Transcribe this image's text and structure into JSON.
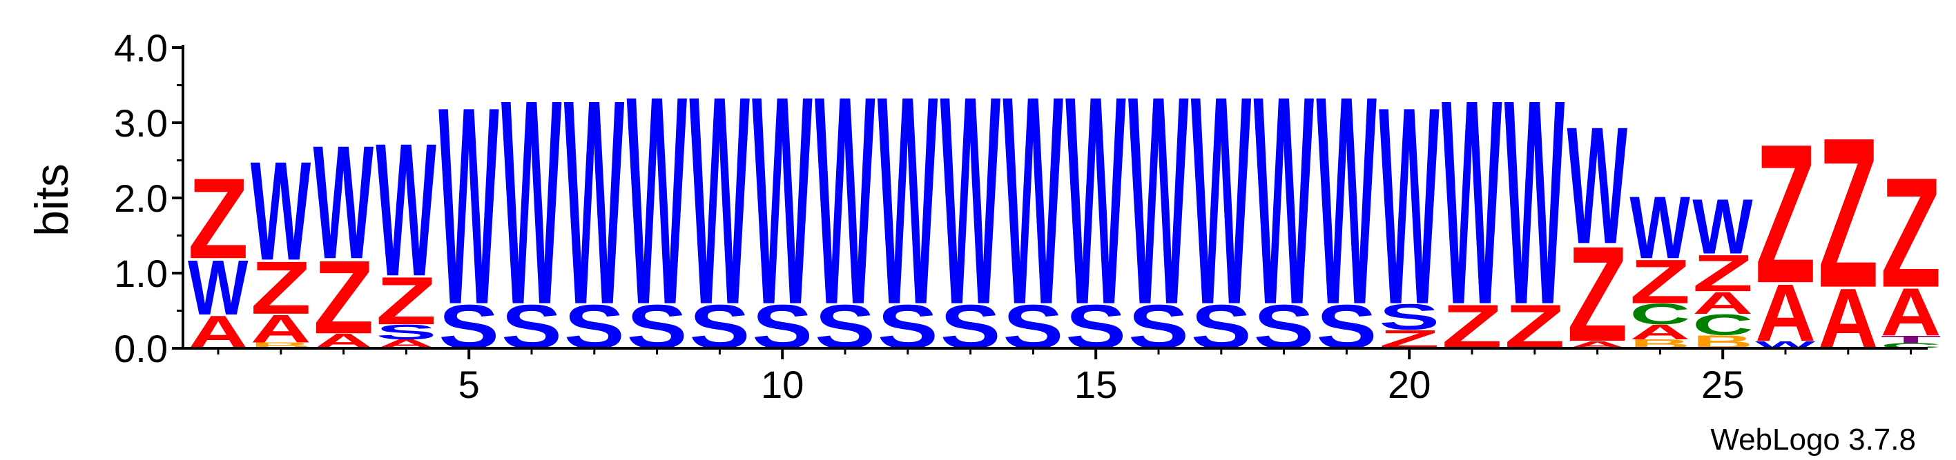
{
  "chart_data": {
    "type": "sequence-logo",
    "ylabel": "bits",
    "ylim": [
      0,
      4.0
    ],
    "y_ticks": [
      "0.0",
      "1.0",
      "2.0",
      "3.0",
      "4.0"
    ],
    "x_ticks": [
      5,
      10,
      15,
      20,
      25
    ],
    "credit": "WebLogo 3.7.8",
    "colors": {
      "A": "#ff0000",
      "Z": "#ff0000",
      "W": "#0000ff",
      "S": "#0000ff",
      "C": "#008000",
      "B": "#ff9900",
      "T": "#800080"
    },
    "positions": [
      {
        "pos": 1,
        "letters": [
          [
            "A",
            0.45
          ],
          [
            "W",
            0.75
          ],
          [
            "Z",
            1.1
          ]
        ]
      },
      {
        "pos": 2,
        "letters": [
          [
            "B",
            0.08
          ],
          [
            "A",
            0.38
          ],
          [
            "Z",
            0.72
          ],
          [
            "W",
            1.35
          ]
        ]
      },
      {
        "pos": 3,
        "letters": [
          [
            "A",
            0.2
          ],
          [
            "Z",
            1.0
          ],
          [
            "W",
            1.55
          ]
        ]
      },
      {
        "pos": 4,
        "letters": [
          [
            "A",
            0.12
          ],
          [
            "S",
            0.2
          ],
          [
            "Z",
            0.65
          ],
          [
            "W",
            1.82
          ]
        ]
      },
      {
        "pos": 5,
        "letters": [
          [
            "S",
            0.6
          ],
          [
            "W",
            2.7
          ]
        ]
      },
      {
        "pos": 6,
        "letters": [
          [
            "S",
            0.6
          ],
          [
            "W",
            2.8
          ]
        ]
      },
      {
        "pos": 7,
        "letters": [
          [
            "S",
            0.6
          ],
          [
            "W",
            2.8
          ]
        ]
      },
      {
        "pos": 8,
        "letters": [
          [
            "S",
            0.6
          ],
          [
            "W",
            2.85
          ]
        ]
      },
      {
        "pos": 9,
        "letters": [
          [
            "S",
            0.6
          ],
          [
            "W",
            2.85
          ]
        ]
      },
      {
        "pos": 10,
        "letters": [
          [
            "S",
            0.6
          ],
          [
            "W",
            2.85
          ]
        ]
      },
      {
        "pos": 11,
        "letters": [
          [
            "S",
            0.6
          ],
          [
            "W",
            2.85
          ]
        ]
      },
      {
        "pos": 12,
        "letters": [
          [
            "S",
            0.6
          ],
          [
            "W",
            2.85
          ]
        ]
      },
      {
        "pos": 13,
        "letters": [
          [
            "S",
            0.6
          ],
          [
            "W",
            2.85
          ]
        ]
      },
      {
        "pos": 14,
        "letters": [
          [
            "S",
            0.6
          ],
          [
            "W",
            2.85
          ]
        ]
      },
      {
        "pos": 15,
        "letters": [
          [
            "S",
            0.6
          ],
          [
            "W",
            2.85
          ]
        ]
      },
      {
        "pos": 16,
        "letters": [
          [
            "S",
            0.6
          ],
          [
            "W",
            2.85
          ]
        ]
      },
      {
        "pos": 17,
        "letters": [
          [
            "S",
            0.6
          ],
          [
            "W",
            2.85
          ]
        ]
      },
      {
        "pos": 18,
        "letters": [
          [
            "S",
            0.6
          ],
          [
            "W",
            2.85
          ]
        ]
      },
      {
        "pos": 19,
        "letters": [
          [
            "S",
            0.6
          ],
          [
            "W",
            2.85
          ]
        ]
      },
      {
        "pos": 20,
        "letters": [
          [
            "Z",
            0.25
          ],
          [
            "S",
            0.35
          ],
          [
            "W",
            2.7
          ]
        ]
      },
      {
        "pos": 21,
        "letters": [
          [
            "Z",
            0.6
          ],
          [
            "W",
            2.8
          ]
        ]
      },
      {
        "pos": 22,
        "letters": [
          [
            "Z",
            0.6
          ],
          [
            "W",
            2.8
          ]
        ]
      },
      {
        "pos": 23,
        "letters": [
          [
            "A",
            0.1
          ],
          [
            "Z",
            1.3
          ],
          [
            "W",
            1.6
          ]
        ]
      },
      {
        "pos": 24,
        "letters": [
          [
            "B",
            0.12
          ],
          [
            "A",
            0.2
          ],
          [
            "C",
            0.28
          ],
          [
            "Z",
            0.6
          ],
          [
            "W",
            0.85
          ]
        ]
      },
      {
        "pos": 25,
        "letters": [
          [
            "B",
            0.18
          ],
          [
            "C",
            0.28
          ],
          [
            "A",
            0.3
          ],
          [
            "Z",
            0.5
          ],
          [
            "W",
            0.75
          ]
        ]
      },
      {
        "pos": 26,
        "letters": [
          [
            "W",
            0.1
          ],
          [
            "A",
            0.78
          ],
          [
            "Z",
            1.9
          ]
        ]
      },
      {
        "pos": 27,
        "letters": [
          [
            "A",
            0.82
          ],
          [
            "Z",
            2.05
          ]
        ]
      },
      {
        "pos": 28,
        "letters": [
          [
            "C",
            0.07
          ],
          [
            "T",
            0.1
          ],
          [
            "A",
            0.65
          ],
          [
            "Z",
            1.5
          ]
        ]
      }
    ]
  }
}
